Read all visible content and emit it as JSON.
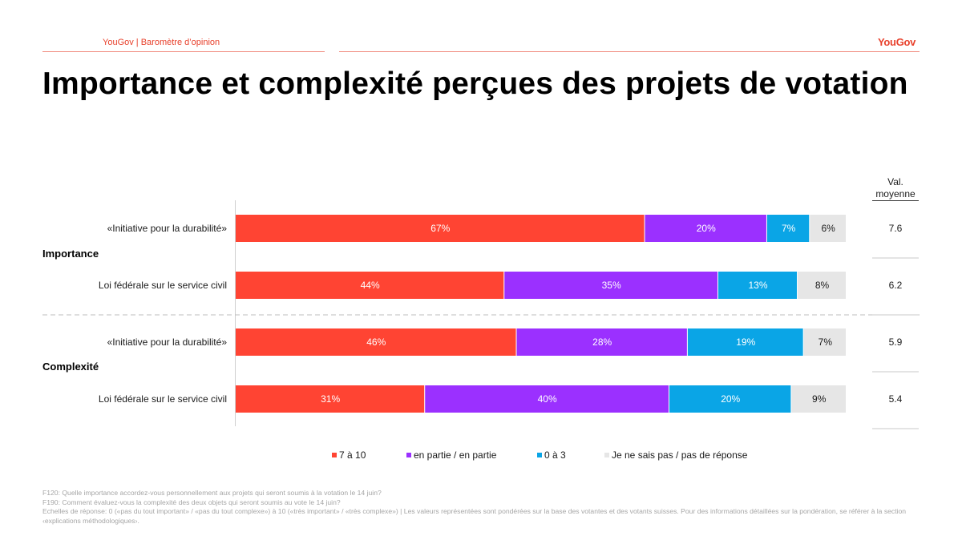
{
  "header": {
    "text": "YouGov | Baromètre d’opinion",
    "logo": "YouGov"
  },
  "title": "Importance et complexité perçues des projets de votation",
  "mean_header": {
    "line1": "Val.",
    "line2": "moyenne"
  },
  "colors": {
    "accent": "#e8412c",
    "s1": "#ff4433",
    "s2": "#9b30ff",
    "s3": "#0aa5e6",
    "s4": "#e6e6e6"
  },
  "chart_data": {
    "type": "bar",
    "orientation": "horizontal",
    "stacked": true,
    "groups": [
      {
        "label": "Importance",
        "rows": [
          {
            "label": "«Initiative pour la durabilité»",
            "values": [
              67,
              20,
              7,
              6
            ],
            "mean": "7.6"
          },
          {
            "label": "Loi fédérale sur le service civil",
            "values": [
              44,
              35,
              13,
              8
            ],
            "mean": "6.2"
          }
        ]
      },
      {
        "label": "Complexité",
        "rows": [
          {
            "label": "«Initiative pour la durabilité»",
            "values": [
              46,
              28,
              19,
              7
            ],
            "mean": "5.9"
          },
          {
            "label": "Loi fédérale sur le service civil",
            "values": [
              31,
              40,
              20,
              9
            ],
            "mean": "5.4"
          }
        ]
      }
    ],
    "series": [
      {
        "name": "7 à 10",
        "color": "#ff4433"
      },
      {
        "name": "en partie / en partie",
        "color": "#9b30ff"
      },
      {
        "name": "0 à 3",
        "color": "#0aa5e6"
      },
      {
        "name": "Je ne sais pas / pas de réponse",
        "color": "#e6e6e6"
      }
    ],
    "unit": "%",
    "xlim": [
      0,
      100
    ],
    "legend_position": "bottom"
  },
  "footnote": [
    "F120: Quelle importance accordez-vous personnellement aux projets qui seront soumis  à la votation le 14 juin?",
    "F190: Comment évaluez-vous la complexité des deux objets qui seront soumis au vote le 14 juin?",
    "Echelles de réponse: 0 («pas du tout important» / «pas du tout complexe») à 10 («très important» / «très complexe») | Les valeurs représentées sont pondérées sur la base des votantes et des votants suisses. Pour des informations détaillées sur la pondération, se référer à la section ‹explications méthodologiques›."
  ]
}
